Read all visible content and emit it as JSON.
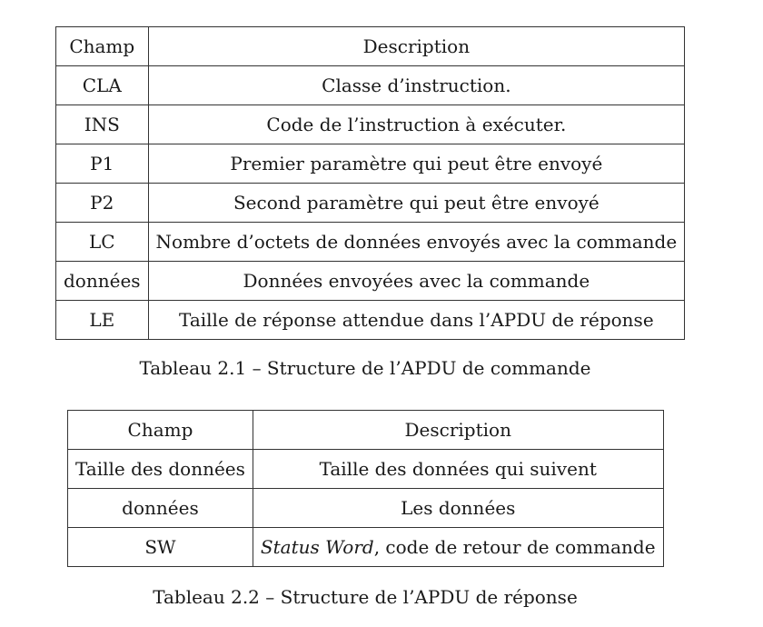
{
  "table1": {
    "headers": {
      "champ": "Champ",
      "description": "Description"
    },
    "rows": [
      {
        "champ": "CLA",
        "description": "Classe d’instruction."
      },
      {
        "champ": "INS",
        "description": "Code de l’instruction à exécuter."
      },
      {
        "champ": "P1",
        "description": "Premier paramètre qui peut être envoyé"
      },
      {
        "champ": "P2",
        "description": "Second paramètre qui peut être envoyé"
      },
      {
        "champ": "LC",
        "description": "Nombre d’octets de données envoyés avec la commande"
      },
      {
        "champ": "données",
        "description": "Données envoyées avec la commande"
      },
      {
        "champ": "LE",
        "description": "Taille de réponse attendue dans l’APDU de réponse"
      }
    ],
    "caption": "Tableau 2.1 – Structure de l’APDU de commande"
  },
  "table2": {
    "headers": {
      "champ": "Champ",
      "description": "Description"
    },
    "rows": [
      {
        "champ": "Taille des données",
        "description": "Taille des données qui suivent"
      },
      {
        "champ": "données",
        "description": "Les données"
      },
      {
        "champ": "SW",
        "description_italic": "Status Word",
        "description_rest": ", code de retour de commande"
      }
    ],
    "caption": "Tableau 2.2 – Structure de l’APDU de réponse"
  }
}
